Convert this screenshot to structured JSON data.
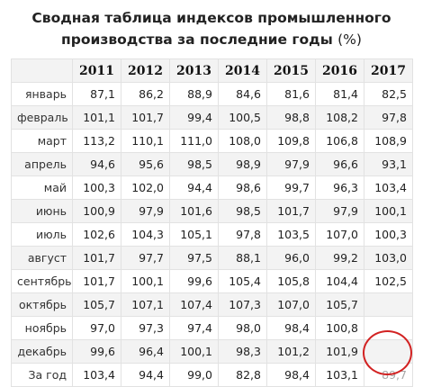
{
  "title_line1": "Сводная таблица индексов промышленного",
  "title_line2": "производства за последние годы",
  "title_unit": "(%)",
  "years": [
    "2011",
    "2012",
    "2013",
    "2014",
    "2015",
    "2016",
    "2017"
  ],
  "rows": [
    {
      "label": "январь",
      "values": [
        "87,1",
        "86,2",
        "88,9",
        "84,6",
        "81,6",
        "81,4",
        "82,5"
      ]
    },
    {
      "label": "февраль",
      "values": [
        "101,1",
        "101,7",
        "99,4",
        "100,5",
        "98,8",
        "108,2",
        "97,8"
      ]
    },
    {
      "label": "март",
      "values": [
        "113,2",
        "110,1",
        "111,0",
        "108,0",
        "109,8",
        "106,8",
        "108,9"
      ]
    },
    {
      "label": "апрель",
      "values": [
        "94,6",
        "95,6",
        "98,5",
        "98,9",
        "97,9",
        "96,6",
        "93,1"
      ]
    },
    {
      "label": "май",
      "values": [
        "100,3",
        "102,0",
        "94,4",
        "98,6",
        "99,7",
        "96,3",
        "103,4"
      ]
    },
    {
      "label": "июнь",
      "values": [
        "100,9",
        "97,9",
        "101,6",
        "98,5",
        "101,7",
        "97,9",
        "100,1"
      ]
    },
    {
      "label": "июль",
      "values": [
        "102,6",
        "104,3",
        "105,1",
        "97,8",
        "103,5",
        "107,0",
        "100,3"
      ]
    },
    {
      "label": "август",
      "values": [
        "101,7",
        "97,7",
        "97,5",
        "88,1",
        "96,0",
        "99,2",
        "103,0"
      ]
    },
    {
      "label": "сентябрь",
      "values": [
        "101,7",
        "100,1",
        "99,6",
        "105,4",
        "105,8",
        "104,4",
        "102,5"
      ]
    },
    {
      "label": "октябрь",
      "values": [
        "105,7",
        "107,1",
        "107,4",
        "107,3",
        "107,0",
        "105,7",
        ""
      ]
    },
    {
      "label": "ноябрь",
      "values": [
        "97,0",
        "97,3",
        "97,4",
        "98,0",
        "98,4",
        "100,8",
        ""
      ]
    },
    {
      "label": "декабрь",
      "values": [
        "99,6",
        "96,4",
        "100,1",
        "98,3",
        "101,2",
        "101,9",
        ""
      ]
    },
    {
      "label": "За год",
      "values": [
        "103,4",
        "94,4",
        "99,0",
        "82,8",
        "98,4",
        "103,1",
        "89,7"
      ]
    }
  ],
  "highlight_color": "#d22222"
}
